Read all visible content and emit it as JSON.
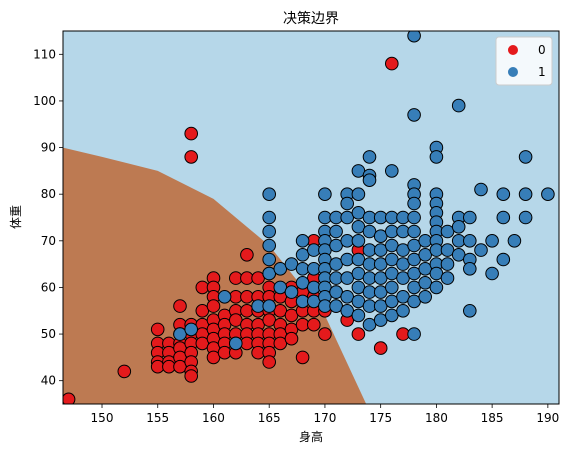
{
  "chart_data": {
    "type": "scatter",
    "title": "决策边界",
    "xlabel": "身高",
    "ylabel": "体重",
    "xlim": [
      146.5,
      191
    ],
    "ylim": [
      35,
      115
    ],
    "x_ticks": [
      150,
      155,
      160,
      165,
      170,
      175,
      180,
      185,
      190
    ],
    "y_ticks": [
      40,
      50,
      60,
      70,
      80,
      90,
      100,
      110
    ],
    "grid": false,
    "legend_position": "top-right",
    "background_regions": [
      {
        "class": "0",
        "color": "#bd7a52",
        "boundary": "curve from (146.5, 90) through (160, 79) and (170, 54) to (173.7, 35)"
      },
      {
        "class": "1",
        "color": "#b6d7e9"
      }
    ],
    "series": [
      {
        "name": "0",
        "color": "#e41a1c",
        "points": [
          [
            147,
            36
          ],
          [
            152,
            42
          ],
          [
            155,
            51
          ],
          [
            155,
            48
          ],
          [
            155,
            46
          ],
          [
            155,
            44
          ],
          [
            155,
            43
          ],
          [
            156,
            48
          ],
          [
            156,
            46
          ],
          [
            156,
            44
          ],
          [
            156,
            43
          ],
          [
            157,
            56
          ],
          [
            157,
            52
          ],
          [
            157,
            50
          ],
          [
            157,
            48
          ],
          [
            157,
            47
          ],
          [
            157,
            45
          ],
          [
            157,
            43
          ],
          [
            158,
            93
          ],
          [
            158,
            88
          ],
          [
            158,
            52
          ],
          [
            158,
            50
          ],
          [
            158,
            48
          ],
          [
            158,
            46
          ],
          [
            158,
            44
          ],
          [
            158,
            42
          ],
          [
            158,
            41
          ],
          [
            159,
            60
          ],
          [
            159,
            55
          ],
          [
            159,
            52
          ],
          [
            159,
            50
          ],
          [
            159,
            48
          ],
          [
            160,
            62
          ],
          [
            160,
            60
          ],
          [
            160,
            58
          ],
          [
            160,
            56
          ],
          [
            160,
            53
          ],
          [
            160,
            51
          ],
          [
            160,
            49
          ],
          [
            160,
            47
          ],
          [
            160,
            45
          ],
          [
            161,
            54
          ],
          [
            161,
            52
          ],
          [
            161,
            50
          ],
          [
            161,
            48
          ],
          [
            161,
            46
          ],
          [
            162,
            62
          ],
          [
            162,
            58
          ],
          [
            162,
            55
          ],
          [
            162,
            53
          ],
          [
            162,
            50
          ],
          [
            162,
            48
          ],
          [
            162,
            46
          ],
          [
            163,
            67
          ],
          [
            163,
            62
          ],
          [
            163,
            58
          ],
          [
            163,
            55
          ],
          [
            163,
            52
          ],
          [
            163,
            50
          ],
          [
            163,
            48
          ],
          [
            164,
            62
          ],
          [
            164,
            58
          ],
          [
            164,
            55
          ],
          [
            164,
            52
          ],
          [
            164,
            50
          ],
          [
            164,
            48
          ],
          [
            164,
            46
          ],
          [
            165,
            63
          ],
          [
            165,
            60
          ],
          [
            165,
            58
          ],
          [
            165,
            55
          ],
          [
            165,
            53
          ],
          [
            165,
            50
          ],
          [
            165,
            48
          ],
          [
            165,
            46
          ],
          [
            165,
            44
          ],
          [
            166,
            58
          ],
          [
            166,
            55
          ],
          [
            166,
            52
          ],
          [
            166,
            50
          ],
          [
            166,
            48
          ],
          [
            167,
            60
          ],
          [
            167,
            57
          ],
          [
            167,
            54
          ],
          [
            167,
            51
          ],
          [
            167,
            49
          ],
          [
            168,
            59
          ],
          [
            168,
            55
          ],
          [
            168,
            52
          ],
          [
            168,
            45
          ],
          [
            169,
            70
          ],
          [
            169,
            62
          ],
          [
            169,
            58
          ],
          [
            169,
            55
          ],
          [
            169,
            52
          ],
          [
            170,
            55
          ],
          [
            170,
            50
          ],
          [
            171,
            59
          ],
          [
            171,
            56
          ],
          [
            172,
            53
          ],
          [
            173,
            68
          ],
          [
            173,
            50
          ],
          [
            175,
            47
          ],
          [
            176,
            108
          ],
          [
            177,
            50
          ]
        ]
      },
      {
        "name": "1",
        "color": "#377eb8",
        "points": [
          [
            157,
            50
          ],
          [
            158,
            51
          ],
          [
            161,
            58
          ],
          [
            162,
            48
          ],
          [
            164,
            56
          ],
          [
            165,
            80
          ],
          [
            165,
            75
          ],
          [
            165,
            72
          ],
          [
            165,
            69
          ],
          [
            165,
            66
          ],
          [
            165,
            63
          ],
          [
            165,
            56
          ],
          [
            166,
            64
          ],
          [
            166,
            60
          ],
          [
            167,
            65
          ],
          [
            167,
            59
          ],
          [
            168,
            70
          ],
          [
            168,
            67
          ],
          [
            168,
            64
          ],
          [
            168,
            61
          ],
          [
            168,
            57
          ],
          [
            169,
            68
          ],
          [
            169,
            64
          ],
          [
            169,
            60
          ],
          [
            169,
            57
          ],
          [
            170,
            80
          ],
          [
            170,
            75
          ],
          [
            170,
            72
          ],
          [
            170,
            70
          ],
          [
            170,
            68
          ],
          [
            170,
            66
          ],
          [
            170,
            64
          ],
          [
            170,
            62
          ],
          [
            170,
            60
          ],
          [
            170,
            58
          ],
          [
            170,
            56
          ],
          [
            171,
            75
          ],
          [
            171,
            72
          ],
          [
            171,
            69
          ],
          [
            171,
            65
          ],
          [
            171,
            62
          ],
          [
            171,
            59
          ],
          [
            171,
            56
          ],
          [
            172,
            80
          ],
          [
            172,
            78
          ],
          [
            172,
            75
          ],
          [
            172,
            70
          ],
          [
            172,
            66
          ],
          [
            172,
            62
          ],
          [
            172,
            58
          ],
          [
            172,
            55
          ],
          [
            173,
            85
          ],
          [
            173,
            80
          ],
          [
            173,
            76
          ],
          [
            173,
            73
          ],
          [
            173,
            70
          ],
          [
            173,
            66
          ],
          [
            173,
            63
          ],
          [
            173,
            60
          ],
          [
            173,
            57
          ],
          [
            173,
            54
          ],
          [
            174,
            88
          ],
          [
            174,
            84
          ],
          [
            174,
            83
          ],
          [
            174,
            75
          ],
          [
            174,
            72
          ],
          [
            174,
            68
          ],
          [
            174,
            65
          ],
          [
            174,
            62
          ],
          [
            174,
            59
          ],
          [
            174,
            56
          ],
          [
            174,
            52
          ],
          [
            175,
            75
          ],
          [
            175,
            71
          ],
          [
            175,
            68
          ],
          [
            175,
            65
          ],
          [
            175,
            62
          ],
          [
            175,
            59
          ],
          [
            175,
            56
          ],
          [
            175,
            53
          ],
          [
            176,
            85
          ],
          [
            176,
            75
          ],
          [
            176,
            72
          ],
          [
            176,
            69
          ],
          [
            176,
            66
          ],
          [
            176,
            63
          ],
          [
            176,
            60
          ],
          [
            176,
            57
          ],
          [
            176,
            54
          ],
          [
            177,
            75
          ],
          [
            177,
            72
          ],
          [
            177,
            68
          ],
          [
            177,
            65
          ],
          [
            177,
            62
          ],
          [
            177,
            58
          ],
          [
            177,
            55
          ],
          [
            178,
            114
          ],
          [
            178,
            97
          ],
          [
            178,
            82
          ],
          [
            178,
            80
          ],
          [
            178,
            78
          ],
          [
            178,
            75
          ],
          [
            178,
            72
          ],
          [
            178,
            69
          ],
          [
            178,
            66
          ],
          [
            178,
            63
          ],
          [
            178,
            60
          ],
          [
            178,
            57
          ],
          [
            178,
            50
          ],
          [
            179,
            70
          ],
          [
            179,
            67
          ],
          [
            179,
            64
          ],
          [
            179,
            61
          ],
          [
            179,
            58
          ],
          [
            180,
            90
          ],
          [
            180,
            88
          ],
          [
            180,
            80
          ],
          [
            180,
            78
          ],
          [
            180,
            76
          ],
          [
            180,
            74
          ],
          [
            180,
            72
          ],
          [
            180,
            70
          ],
          [
            180,
            68
          ],
          [
            180,
            65
          ],
          [
            180,
            63
          ],
          [
            180,
            60
          ],
          [
            181,
            72
          ],
          [
            181,
            68
          ],
          [
            181,
            65
          ],
          [
            181,
            62
          ],
          [
            182,
            99
          ],
          [
            182,
            75
          ],
          [
            182,
            73
          ],
          [
            182,
            70
          ],
          [
            182,
            67
          ],
          [
            183,
            75
          ],
          [
            183,
            70
          ],
          [
            183,
            66
          ],
          [
            183,
            64
          ],
          [
            183,
            55
          ],
          [
            184,
            81
          ],
          [
            184,
            68
          ],
          [
            185,
            70
          ],
          [
            185,
            63
          ],
          [
            186,
            80
          ],
          [
            186,
            75
          ],
          [
            186,
            66
          ],
          [
            187,
            70
          ],
          [
            188,
            88
          ],
          [
            188,
            80
          ],
          [
            188,
            75
          ],
          [
            190,
            80
          ]
        ]
      }
    ]
  }
}
